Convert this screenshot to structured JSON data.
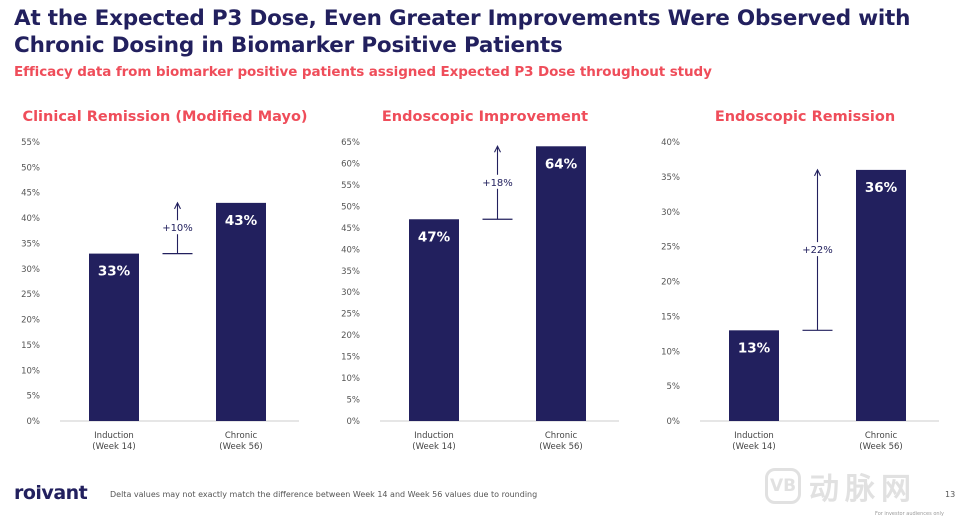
{
  "header": {
    "title": "At the Expected P3 Dose, Even Greater Improvements Were Observed with Chronic Dosing in Biomarker Positive Patients",
    "subtitle": "Efficacy data from biomarker positive patients assigned Expected P3 Dose throughout study"
  },
  "colors": {
    "bar": "#22205e",
    "accent": "#ef4d5a",
    "text": "#22205e"
  },
  "chart_data": [
    {
      "type": "bar",
      "title": "Clinical Remission (Modified Mayo)",
      "categories": [
        "Induction\n(Week 14)",
        "Chronic\n(Week 56)"
      ],
      "values": [
        33,
        43
      ],
      "data_labels": [
        "33%",
        "43%"
      ],
      "delta_label": "+10%",
      "ylim": [
        0,
        55
      ],
      "yticks": [
        0,
        5,
        10,
        15,
        20,
        25,
        30,
        35,
        40,
        45,
        50,
        55
      ],
      "ytick_labels": [
        "0%",
        "5%",
        "10%",
        "15%",
        "20%",
        "25%",
        "30%",
        "35%",
        "40%",
        "45%",
        "50%",
        "55%"
      ],
      "xlabel": "",
      "ylabel": ""
    },
    {
      "type": "bar",
      "title": "Endoscopic Improvement",
      "categories": [
        "Induction\n(Week 14)",
        "Chronic\n(Week 56)"
      ],
      "values": [
        47,
        64
      ],
      "data_labels": [
        "47%",
        "64%"
      ],
      "delta_label": "+18%",
      "ylim": [
        0,
        65
      ],
      "yticks": [
        0,
        5,
        10,
        15,
        20,
        25,
        30,
        35,
        40,
        45,
        50,
        55,
        60,
        65
      ],
      "ytick_labels": [
        "0%",
        "5%",
        "10%",
        "15%",
        "20%",
        "25%",
        "30%",
        "35%",
        "40%",
        "45%",
        "50%",
        "55%",
        "60%",
        "65%"
      ],
      "xlabel": "",
      "ylabel": ""
    },
    {
      "type": "bar",
      "title": "Endoscopic Remission",
      "categories": [
        "Induction\n(Week 14)",
        "Chronic\n(Week 56)"
      ],
      "values": [
        13,
        36
      ],
      "data_labels": [
        "13%",
        "36%"
      ],
      "delta_label": "+22%",
      "ylim": [
        0,
        40
      ],
      "yticks": [
        0,
        5,
        10,
        15,
        20,
        25,
        30,
        35,
        40
      ],
      "ytick_labels": [
        "0%",
        "5%",
        "10%",
        "15%",
        "20%",
        "25%",
        "30%",
        "35%",
        "40%"
      ],
      "xlabel": "",
      "ylabel": ""
    }
  ],
  "footer": {
    "logo": "roivant",
    "note": "Delta values may not exactly match the difference between Week 14 and Week 56 values due to rounding",
    "page_number": "13",
    "watermark_badge": "VB",
    "watermark_text": "动脉网",
    "investor_note": "For investor audiences only"
  }
}
